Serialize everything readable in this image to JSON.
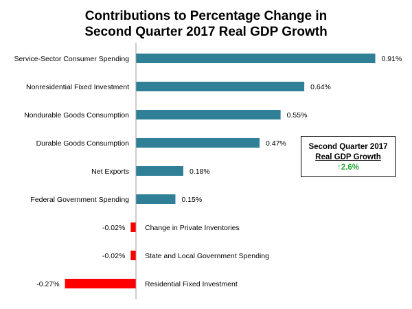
{
  "chart_data": {
    "type": "bar",
    "orientation": "horizontal",
    "title": "Contributions to Percentage Change in Second Quarter 2017 Real GDP Growth",
    "title_lines": [
      "Contributions to Percentage Change in",
      "Second Quarter 2017 Real GDP Growth"
    ],
    "categories": [
      "Service-Sector Consumer Spending",
      "Nonresidential Fixed Investment",
      "Nondurable Goods Consumption",
      "Durable Goods Consumption",
      "Net Exports",
      "Federal Government Spending",
      "Change in Private Inventories",
      "State and Local Government Spending",
      "Residential Fixed Investment"
    ],
    "values": [
      0.91,
      0.64,
      0.55,
      0.47,
      0.18,
      0.15,
      -0.02,
      -0.02,
      -0.27
    ],
    "value_labels": [
      "0.91%",
      "0.64%",
      "0.55%",
      "0.47%",
      "0.18%",
      "0.15%",
      "-0.02%",
      "-0.02%",
      "-0.27%"
    ],
    "xlim": [
      -0.27,
      0.91
    ],
    "xlabel": "",
    "ylabel": "",
    "grid": false,
    "colors": {
      "positive": "#2f7f97",
      "negative": "#ff0000"
    }
  },
  "callout": {
    "title": "Second Quarter 2017",
    "subtitle": "Real GDP Growth",
    "arrow": "up-arrow-icon",
    "value": "2.6%",
    "value_color": "#2eaa3a"
  }
}
